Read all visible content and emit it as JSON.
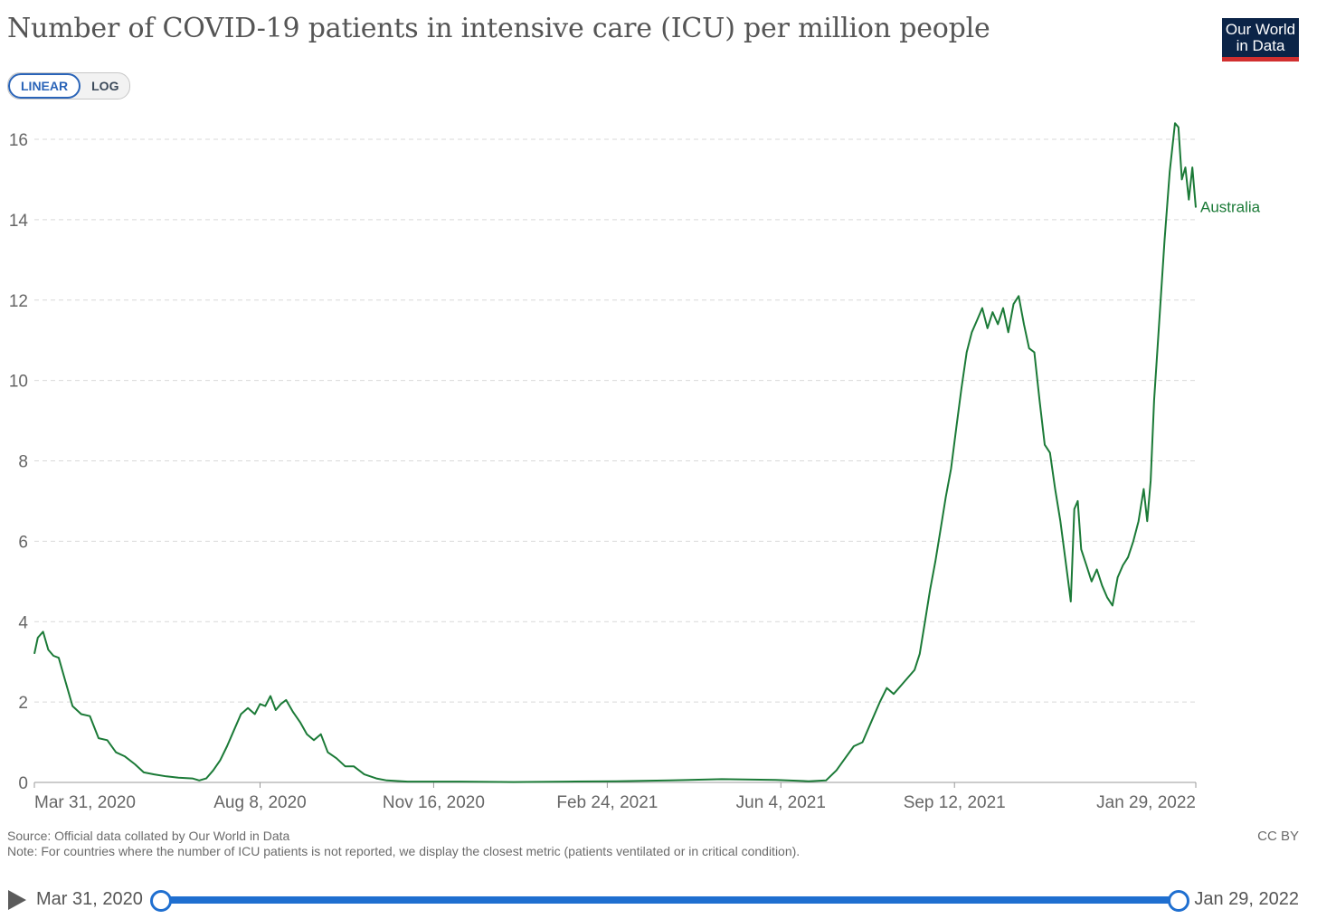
{
  "header": {
    "title": "Number of COVID-19 patients in intensive care (ICU) per million people",
    "logo_line1": "Our World",
    "logo_line2": "in Data"
  },
  "scale_toggle": {
    "linear_label": "LINEAR",
    "log_label": "LOG",
    "selected": "LINEAR"
  },
  "footer": {
    "source": "Source: Official data collated by Our World in Data",
    "note": "Note: For countries where the number of ICU patients is not reported, we display the closest metric (patients ventilated or in critical condition).",
    "license": "CC BY"
  },
  "timeline": {
    "start_label": "Mar 31, 2020",
    "end_label": "Jan 29, 2022",
    "start_fraction": 0,
    "end_fraction": 1
  },
  "colors": {
    "series": "#1b7a37",
    "grid": "#d9d9d9",
    "accent": "#1f6fd0"
  },
  "chart_data": {
    "type": "line",
    "title": "Number of COVID-19 patients in intensive care (ICU) per million people",
    "xlabel": "",
    "ylabel": "",
    "x_type": "date",
    "xlim": [
      "2020-03-31",
      "2022-01-29"
    ],
    "ylim": [
      0,
      16
    ],
    "yticks": [
      0,
      2,
      4,
      6,
      8,
      10,
      12,
      14,
      16
    ],
    "xticks": [
      "2020-03-31",
      "2020-08-08",
      "2020-11-16",
      "2021-02-24",
      "2021-06-04",
      "2021-09-12",
      "2022-01-29"
    ],
    "xtick_labels": [
      "Mar 31, 2020",
      "Aug 8, 2020",
      "Nov 16, 2020",
      "Feb 24, 2021",
      "Jun 4, 2021",
      "Sep 12, 2021",
      "Jan 29, 2022"
    ],
    "grid": "horizontal dashed",
    "series": [
      {
        "name": "Australia",
        "color": "#1b7a37",
        "points": [
          [
            "2020-03-31",
            3.2
          ],
          [
            "2020-04-02",
            3.6
          ],
          [
            "2020-04-05",
            3.75
          ],
          [
            "2020-04-08",
            3.3
          ],
          [
            "2020-04-11",
            3.15
          ],
          [
            "2020-04-14",
            3.1
          ],
          [
            "2020-04-18",
            2.5
          ],
          [
            "2020-04-22",
            1.9
          ],
          [
            "2020-04-27",
            1.7
          ],
          [
            "2020-05-02",
            1.65
          ],
          [
            "2020-05-07",
            1.1
          ],
          [
            "2020-05-12",
            1.05
          ],
          [
            "2020-05-17",
            0.75
          ],
          [
            "2020-05-22",
            0.65
          ],
          [
            "2020-05-28",
            0.45
          ],
          [
            "2020-06-02",
            0.25
          ],
          [
            "2020-06-08",
            0.2
          ],
          [
            "2020-06-15",
            0.15
          ],
          [
            "2020-06-22",
            0.12
          ],
          [
            "2020-06-30",
            0.1
          ],
          [
            "2020-07-04",
            0.05
          ],
          [
            "2020-07-08",
            0.1
          ],
          [
            "2020-07-12",
            0.3
          ],
          [
            "2020-07-16",
            0.55
          ],
          [
            "2020-07-20",
            0.9
          ],
          [
            "2020-07-24",
            1.3
          ],
          [
            "2020-07-28",
            1.7
          ],
          [
            "2020-08-01",
            1.85
          ],
          [
            "2020-08-05",
            1.7
          ],
          [
            "2020-08-08",
            1.95
          ],
          [
            "2020-08-11",
            1.9
          ],
          [
            "2020-08-14",
            2.15
          ],
          [
            "2020-08-17",
            1.8
          ],
          [
            "2020-08-20",
            1.95
          ],
          [
            "2020-08-23",
            2.05
          ],
          [
            "2020-08-27",
            1.75
          ],
          [
            "2020-08-31",
            1.5
          ],
          [
            "2020-09-04",
            1.2
          ],
          [
            "2020-09-08",
            1.05
          ],
          [
            "2020-09-12",
            1.2
          ],
          [
            "2020-09-16",
            0.75
          ],
          [
            "2020-09-21",
            0.6
          ],
          [
            "2020-09-26",
            0.4
          ],
          [
            "2020-10-01",
            0.4
          ],
          [
            "2020-10-07",
            0.2
          ],
          [
            "2020-10-14",
            0.1
          ],
          [
            "2020-10-20",
            0.05
          ],
          [
            "2020-11-01",
            0.02
          ],
          [
            "2020-12-01",
            0.02
          ],
          [
            "2021-01-01",
            0.01
          ],
          [
            "2021-02-01",
            0.02
          ],
          [
            "2021-03-01",
            0.03
          ],
          [
            "2021-04-01",
            0.05
          ],
          [
            "2021-05-01",
            0.08
          ],
          [
            "2021-06-01",
            0.06
          ],
          [
            "2021-06-20",
            0.03
          ],
          [
            "2021-06-30",
            0.05
          ],
          [
            "2021-07-06",
            0.3
          ],
          [
            "2021-07-11",
            0.6
          ],
          [
            "2021-07-16",
            0.9
          ],
          [
            "2021-07-21",
            1.0
          ],
          [
            "2021-07-26",
            1.5
          ],
          [
            "2021-07-31",
            2.0
          ],
          [
            "2021-08-04",
            2.35
          ],
          [
            "2021-08-08",
            2.2
          ],
          [
            "2021-08-12",
            2.4
          ],
          [
            "2021-08-16",
            2.6
          ],
          [
            "2021-08-20",
            2.8
          ],
          [
            "2021-08-23",
            3.2
          ],
          [
            "2021-08-26",
            4.0
          ],
          [
            "2021-08-29",
            4.8
          ],
          [
            "2021-09-01",
            5.5
          ],
          [
            "2021-09-04",
            6.3
          ],
          [
            "2021-09-07",
            7.1
          ],
          [
            "2021-09-10",
            7.8
          ],
          [
            "2021-09-13",
            8.8
          ],
          [
            "2021-09-16",
            9.8
          ],
          [
            "2021-09-19",
            10.7
          ],
          [
            "2021-09-22",
            11.2
          ],
          [
            "2021-09-25",
            11.5
          ],
          [
            "2021-09-28",
            11.8
          ],
          [
            "2021-10-01",
            11.3
          ],
          [
            "2021-10-04",
            11.7
          ],
          [
            "2021-10-07",
            11.4
          ],
          [
            "2021-10-10",
            11.8
          ],
          [
            "2021-10-13",
            11.2
          ],
          [
            "2021-10-16",
            11.9
          ],
          [
            "2021-10-19",
            12.1
          ],
          [
            "2021-10-22",
            11.4
          ],
          [
            "2021-10-25",
            10.8
          ],
          [
            "2021-10-28",
            10.7
          ],
          [
            "2021-10-31",
            9.5
          ],
          [
            "2021-11-03",
            8.4
          ],
          [
            "2021-11-06",
            8.2
          ],
          [
            "2021-11-09",
            7.3
          ],
          [
            "2021-11-12",
            6.5
          ],
          [
            "2021-11-15",
            5.5
          ],
          [
            "2021-11-18",
            4.5
          ],
          [
            "2021-11-20",
            6.8
          ],
          [
            "2021-11-22",
            7.0
          ],
          [
            "2021-11-24",
            5.8
          ],
          [
            "2021-11-27",
            5.4
          ],
          [
            "2021-11-30",
            5.0
          ],
          [
            "2021-12-03",
            5.3
          ],
          [
            "2021-12-06",
            4.9
          ],
          [
            "2021-12-09",
            4.6
          ],
          [
            "2021-12-12",
            4.4
          ],
          [
            "2021-12-15",
            5.1
          ],
          [
            "2021-12-18",
            5.4
          ],
          [
            "2021-12-21",
            5.6
          ],
          [
            "2021-12-24",
            6.0
          ],
          [
            "2021-12-27",
            6.5
          ],
          [
            "2021-12-30",
            7.3
          ],
          [
            "2022-01-01",
            6.5
          ],
          [
            "2022-01-03",
            7.5
          ],
          [
            "2022-01-05",
            9.5
          ],
          [
            "2022-01-08",
            11.5
          ],
          [
            "2022-01-11",
            13.5
          ],
          [
            "2022-01-14",
            15.2
          ],
          [
            "2022-01-17",
            16.4
          ],
          [
            "2022-01-19",
            16.3
          ],
          [
            "2022-01-21",
            15.0
          ],
          [
            "2022-01-23",
            15.3
          ],
          [
            "2022-01-25",
            14.5
          ],
          [
            "2022-01-27",
            15.3
          ],
          [
            "2022-01-29",
            14.3
          ]
        ]
      }
    ]
  }
}
